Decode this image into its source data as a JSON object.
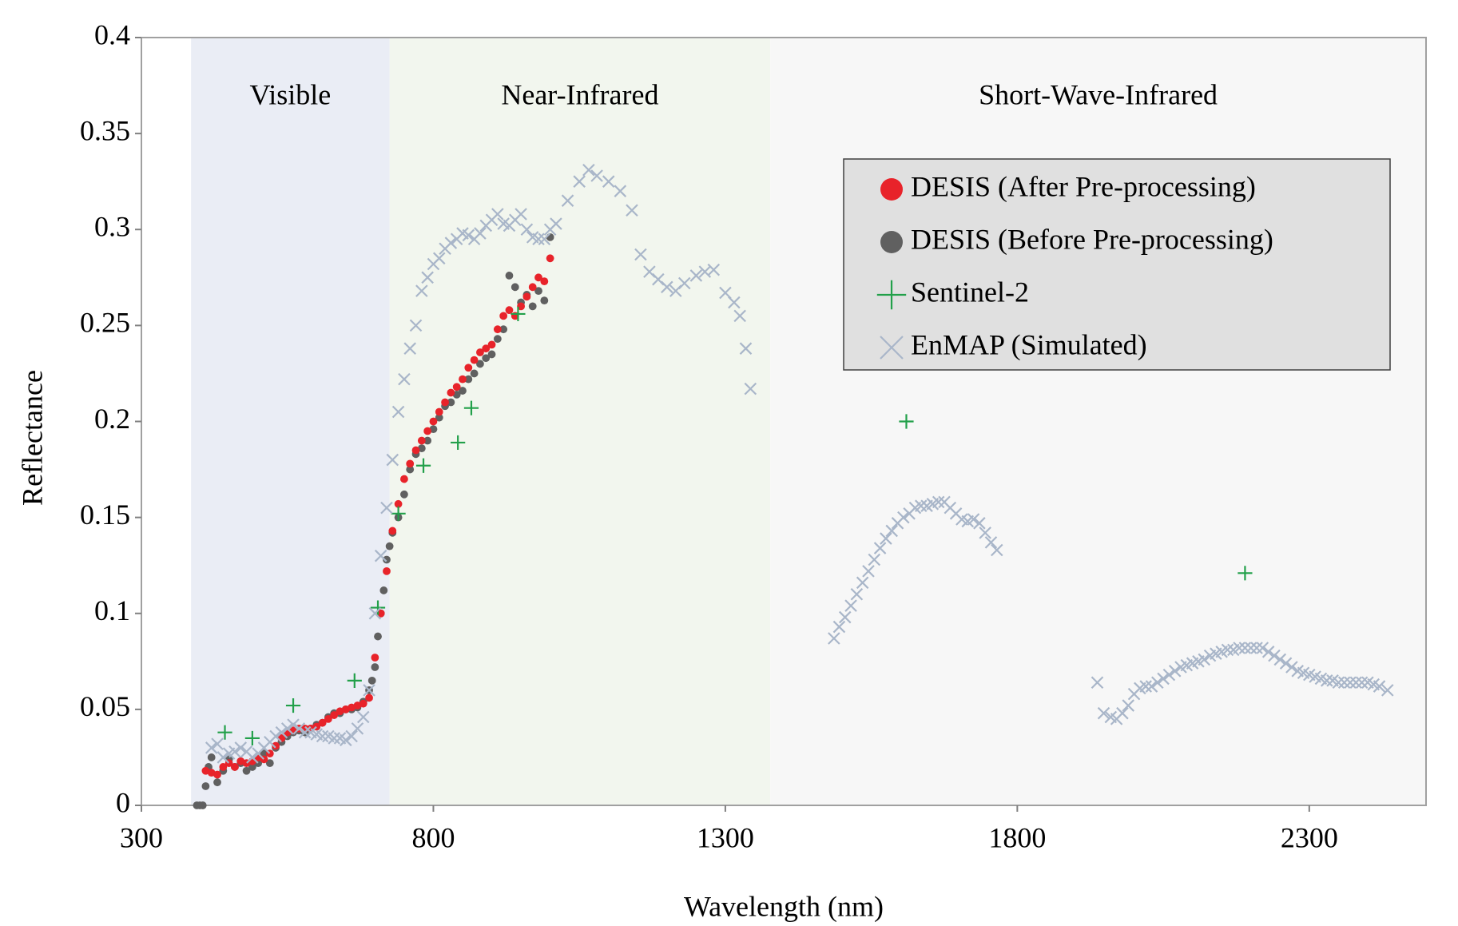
{
  "chart_data": {
    "type": "scatter",
    "xlabel": "Wavelength (nm)",
    "ylabel": "Reflectance",
    "xlim": [
      300,
      2500
    ],
    "ylim": [
      0,
      0.4
    ],
    "xticks": [
      300,
      800,
      1300,
      1800,
      2300
    ],
    "yticks": [
      0,
      0.05,
      0.1,
      0.15,
      0.2,
      0.25,
      0.3,
      0.35,
      0.4
    ],
    "legend": "upper right",
    "regions": [
      {
        "label": "Visible",
        "x": [
          385,
          725
        ],
        "color": "#eaedf5"
      },
      {
        "label": "Near-Infrared",
        "x": [
          725,
          1377
        ],
        "color": "#f2f6ee"
      },
      {
        "label": "Short-Wave-Infrared",
        "x": [
          1377,
          2500
        ],
        "color": "#f7f7f7"
      }
    ],
    "series": [
      {
        "name": "DESIS (Before Pre-processing)",
        "color": "#606060",
        "marker": "circle",
        "x": [
          395,
          400,
          405,
          410,
          415,
          420,
          430,
          440,
          450,
          460,
          470,
          480,
          490,
          500,
          510,
          520,
          530,
          540,
          550,
          560,
          570,
          580,
          590,
          600,
          610,
          620,
          630,
          640,
          650,
          660,
          670,
          680,
          690,
          695,
          700,
          705,
          710,
          715,
          720,
          725,
          730,
          740,
          750,
          760,
          770,
          780,
          790,
          800,
          810,
          820,
          830,
          840,
          850,
          860,
          870,
          880,
          890,
          900,
          910,
          920,
          930,
          940,
          950,
          960,
          970,
          980,
          990,
          1000
        ],
        "values": [
          0,
          0,
          0,
          0.01,
          0.02,
          0.025,
          0.012,
          0.018,
          0.024,
          0.02,
          0.022,
          0.018,
          0.02,
          0.022,
          0.027,
          0.022,
          0.03,
          0.033,
          0.036,
          0.038,
          0.039,
          0.038,
          0.04,
          0.042,
          0.043,
          0.046,
          0.048,
          0.048,
          0.05,
          0.05,
          0.051,
          0.054,
          0.06,
          0.065,
          0.072,
          0.088,
          0.1,
          0.112,
          0.128,
          0.135,
          0.142,
          0.15,
          0.162,
          0.175,
          0.183,
          0.186,
          0.19,
          0.196,
          0.202,
          0.208,
          0.21,
          0.214,
          0.216,
          0.222,
          0.225,
          0.23,
          0.233,
          0.235,
          0.243,
          0.248,
          0.276,
          0.27,
          0.262,
          0.266,
          0.26,
          0.268,
          0.263,
          0.296
        ]
      },
      {
        "name": "DESIS (After Pre-processing)",
        "color": "#e8232a",
        "marker": "circle",
        "x": [
          410,
          420,
          430,
          440,
          450,
          460,
          470,
          480,
          490,
          500,
          510,
          520,
          530,
          540,
          550,
          560,
          570,
          580,
          590,
          600,
          610,
          620,
          630,
          640,
          650,
          660,
          670,
          680,
          690,
          700,
          710,
          720,
          730,
          740,
          750,
          760,
          770,
          780,
          790,
          800,
          810,
          820,
          830,
          840,
          850,
          860,
          870,
          880,
          890,
          900,
          910,
          920,
          930,
          940,
          950,
          960,
          970,
          980,
          990,
          1000
        ],
        "values": [
          0.018,
          0.017,
          0.016,
          0.02,
          0.022,
          0.02,
          0.023,
          0.022,
          0.023,
          0.025,
          0.024,
          0.027,
          0.031,
          0.035,
          0.038,
          0.039,
          0.04,
          0.04,
          0.04,
          0.041,
          0.043,
          0.045,
          0.047,
          0.049,
          0.05,
          0.051,
          0.052,
          0.053,
          0.056,
          0.077,
          0.1,
          0.122,
          0.143,
          0.157,
          0.17,
          0.178,
          0.185,
          0.19,
          0.195,
          0.2,
          0.205,
          0.21,
          0.215,
          0.218,
          0.222,
          0.228,
          0.232,
          0.236,
          0.238,
          0.24,
          0.248,
          0.255,
          0.258,
          0.255,
          0.26,
          0.265,
          0.27,
          0.275,
          0.273,
          0.285
        ]
      },
      {
        "name": "Sentinel-2",
        "color": "#22a04a",
        "marker": "plus",
        "x": [
          443,
          490,
          560,
          665,
          705,
          740,
          783,
          842,
          865,
          945,
          1610,
          2190
        ],
        "values": [
          0.038,
          0.035,
          0.052,
          0.065,
          0.103,
          0.152,
          0.177,
          0.189,
          0.207,
          0.256,
          0.2,
          0.121
        ]
      },
      {
        "name": "EnMAP (Simulated)",
        "color": "#a9b6c9",
        "marker": "cross",
        "x": [
          420,
          430,
          440,
          450,
          460,
          470,
          480,
          490,
          500,
          510,
          520,
          530,
          540,
          550,
          560,
          570,
          580,
          590,
          600,
          610,
          620,
          630,
          640,
          650,
          660,
          670,
          680,
          690,
          700,
          710,
          720,
          730,
          740,
          750,
          760,
          770,
          780,
          790,
          800,
          810,
          820,
          830,
          840,
          850,
          860,
          870,
          880,
          890,
          900,
          910,
          920,
          930,
          940,
          950,
          960,
          970,
          980,
          990,
          1000,
          1010,
          1030,
          1050,
          1066,
          1080,
          1100,
          1120,
          1140,
          1155,
          1170,
          1185,
          1200,
          1215,
          1230,
          1250,
          1265,
          1280,
          1300,
          1315,
          1325,
          1335,
          1343,
          1486,
          1495,
          1505,
          1515,
          1525,
          1535,
          1545,
          1555,
          1565,
          1575,
          1585,
          1595,
          1605,
          1615,
          1625,
          1635,
          1645,
          1655,
          1665,
          1675,
          1685,
          1695,
          1705,
          1715,
          1725,
          1735,
          1745,
          1755,
          1765,
          1937,
          1948,
          1960,
          1970,
          1980,
          1990,
          2000,
          2010,
          2020,
          2030,
          2040,
          2050,
          2060,
          2070,
          2080,
          2090,
          2100,
          2110,
          2120,
          2130,
          2140,
          2150,
          2160,
          2170,
          2180,
          2190,
          2200,
          2210,
          2220,
          2230,
          2240,
          2250,
          2260,
          2270,
          2280,
          2290,
          2300,
          2310,
          2320,
          2330,
          2340,
          2350,
          2360,
          2370,
          2380,
          2390,
          2400,
          2410,
          2420,
          2434
        ],
        "values": [
          0.03,
          0.032,
          0.025,
          0.027,
          0.028,
          0.03,
          0.028,
          0.025,
          0.027,
          0.03,
          0.033,
          0.036,
          0.038,
          0.04,
          0.042,
          0.04,
          0.038,
          0.038,
          0.037,
          0.036,
          0.036,
          0.035,
          0.035,
          0.034,
          0.036,
          0.04,
          0.046,
          0.06,
          0.1,
          0.13,
          0.155,
          0.18,
          0.205,
          0.222,
          0.238,
          0.25,
          0.268,
          0.275,
          0.282,
          0.285,
          0.29,
          0.293,
          0.295,
          0.298,
          0.297,
          0.295,
          0.298,
          0.302,
          0.305,
          0.308,
          0.303,
          0.302,
          0.305,
          0.308,
          0.3,
          0.296,
          0.295,
          0.295,
          0.3,
          0.303,
          0.315,
          0.325,
          0.331,
          0.328,
          0.325,
          0.32,
          0.31,
          0.287,
          0.278,
          0.274,
          0.27,
          0.268,
          0.272,
          0.276,
          0.278,
          0.279,
          0.267,
          0.262,
          0.255,
          0.238,
          0.217,
          0.087,
          0.093,
          0.098,
          0.104,
          0.11,
          0.116,
          0.122,
          0.128,
          0.134,
          0.139,
          0.143,
          0.147,
          0.15,
          0.152,
          0.155,
          0.156,
          0.156,
          0.157,
          0.158,
          0.158,
          0.155,
          0.152,
          0.149,
          0.148,
          0.149,
          0.147,
          0.142,
          0.137,
          0.133,
          0.064,
          0.048,
          0.046,
          0.045,
          0.048,
          0.052,
          0.058,
          0.061,
          0.062,
          0.062,
          0.064,
          0.066,
          0.068,
          0.07,
          0.072,
          0.073,
          0.074,
          0.075,
          0.076,
          0.078,
          0.079,
          0.08,
          0.081,
          0.081,
          0.082,
          0.082,
          0.082,
          0.082,
          0.082,
          0.08,
          0.078,
          0.076,
          0.074,
          0.072,
          0.07,
          0.069,
          0.068,
          0.067,
          0.066,
          0.065,
          0.065,
          0.064,
          0.064,
          0.064,
          0.064,
          0.064,
          0.064,
          0.063,
          0.062,
          0.06
        ]
      }
    ]
  }
}
